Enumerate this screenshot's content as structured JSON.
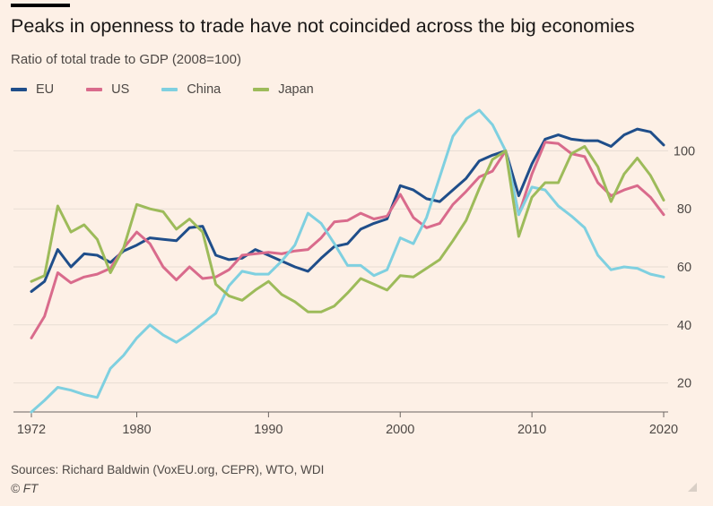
{
  "header": {
    "title": "Peaks in openness to trade have not coincided across the big economies",
    "subtitle": "Ratio of total trade to GDP (2008=100)"
  },
  "legend": [
    {
      "label": "EU",
      "color": "#1f4e8a"
    },
    {
      "label": "US",
      "color": "#d96b8c"
    },
    {
      "label": "China",
      "color": "#7fd0e0"
    },
    {
      "label": "Japan",
      "color": "#9dbb5a"
    }
  ],
  "footer": {
    "source": "Sources: Richard Baldwin (VoxEU.org, CEPR), WTO, WDI",
    "copyright": "© FT"
  },
  "colors": {
    "background": "#fdf0e6",
    "grid": "#e8ddd3",
    "axis": "#6b6561"
  },
  "chart_data": {
    "type": "line",
    "title": "Peaks in openness to trade have not coincided across the big economies",
    "ylabel": "Ratio of total trade to GDP (2008=100)",
    "xlim": [
      1972,
      2020
    ],
    "ylim": [
      10,
      110
    ],
    "x_ticks": [
      1972,
      1980,
      1990,
      2000,
      2010,
      2020
    ],
    "x_tick_labels": [
      "1972",
      "1980",
      "1990",
      "2000",
      "2010",
      "2020"
    ],
    "y_ticks": [
      20,
      40,
      60,
      80,
      100
    ],
    "y_tick_labels": [
      "20",
      "40",
      "60",
      "80",
      "100"
    ],
    "grid": true,
    "y_axis_position": "right",
    "legend_position": "top-left",
    "x": [
      1972,
      1973,
      1974,
      1975,
      1976,
      1977,
      1978,
      1979,
      1980,
      1981,
      1982,
      1983,
      1984,
      1985,
      1986,
      1987,
      1988,
      1989,
      1990,
      1991,
      1992,
      1993,
      1994,
      1995,
      1996,
      1997,
      1998,
      1999,
      2000,
      2001,
      2002,
      2003,
      2004,
      2005,
      2006,
      2007,
      2008,
      2009,
      2010,
      2011,
      2012,
      2013,
      2014,
      2015,
      2016,
      2017,
      2018,
      2019,
      2020
    ],
    "series": [
      {
        "name": "EU",
        "color": "#1f4e8a",
        "values": [
          51.5,
          55,
          66,
          60,
          64.5,
          64,
          61.5,
          65.5,
          67.5,
          70,
          69.5,
          69,
          73.5,
          74,
          64,
          62.5,
          63,
          66,
          64,
          62,
          60,
          58.5,
          63,
          67,
          68,
          73,
          75,
          76.5,
          88,
          86.5,
          83.5,
          82.5,
          86.5,
          90.5,
          96.5,
          98.5,
          100,
          84.5,
          95.5,
          104,
          105.5,
          104,
          103.5,
          103.5,
          101.5,
          105.5,
          107.5,
          106.5,
          102
        ]
      },
      {
        "name": "US",
        "color": "#d96b8c",
        "values": [
          35.5,
          43,
          58,
          54.5,
          56.5,
          57.5,
          59.5,
          66.5,
          72,
          68,
          60,
          55.5,
          60,
          56,
          56.5,
          59,
          64,
          64.5,
          65,
          64.5,
          65.5,
          66,
          70,
          75.5,
          76,
          78.5,
          76.5,
          77.5,
          85,
          77,
          73.5,
          75,
          81.5,
          86,
          91,
          93,
          100,
          78,
          92,
          103,
          102.5,
          99,
          98,
          89,
          84.5,
          86.5,
          88,
          84,
          78
        ]
      },
      {
        "name": "China",
        "color": "#7fd0e0",
        "values": [
          10,
          14,
          18.5,
          17.5,
          16,
          15,
          25,
          29.5,
          35.5,
          40,
          36.5,
          34,
          37,
          40.5,
          44,
          53.5,
          58.5,
          57.5,
          57.5,
          62,
          67.5,
          78.5,
          75,
          68,
          60.5,
          60.5,
          57,
          59,
          70,
          68,
          77,
          91,
          105,
          111,
          114,
          109,
          100,
          78,
          87.5,
          86.5,
          81,
          77.5,
          73.5,
          64,
          59,
          60,
          59.5,
          57.5,
          56.5
        ]
      },
      {
        "name": "Japan",
        "color": "#9dbb5a",
        "values": [
          55,
          57,
          81,
          72,
          74.5,
          69.5,
          58,
          66.5,
          81.5,
          80,
          79,
          73,
          76.5,
          72,
          54,
          50,
          48.5,
          52,
          55,
          50.5,
          48,
          44.5,
          44.5,
          46.5,
          51,
          56,
          54,
          52,
          57,
          56.5,
          59.5,
          62.5,
          69,
          76,
          87,
          97,
          100,
          70.5,
          84,
          89,
          89,
          99,
          101.5,
          94.5,
          82.5,
          92,
          97.5,
          91.5,
          83
        ]
      }
    ]
  }
}
